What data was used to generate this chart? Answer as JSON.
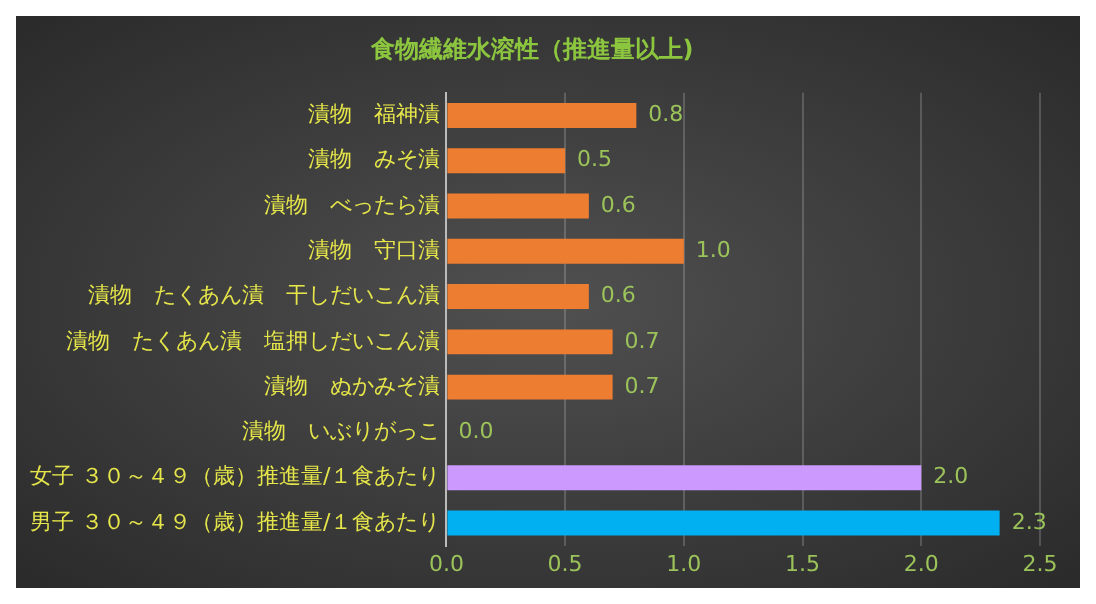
{
  "chart_data": {
    "type": "bar",
    "orientation": "horizontal",
    "title": "食物繊維水溶性（推進量以上)",
    "categories": [
      "漬物　福神漬",
      "漬物　みそ漬",
      "漬物　べったら漬",
      "漬物　守口漬",
      "漬物　たくあん漬　干しだいこん漬",
      "漬物　たくあん漬　塩押しだいこん漬",
      "漬物　ぬかみそ漬",
      "漬物　いぶりがっこ",
      "女子 ３０～４９（歳）推進量/１食あたり",
      "男子 ３０～４９（歳）推進量/１食あたり"
    ],
    "values": [
      0.8,
      0.5,
      0.6,
      1.0,
      0.6,
      0.7,
      0.7,
      0.0,
      2.0,
      2.33
    ],
    "colors": [
      "#ed7d31",
      "#ed7d31",
      "#ed7d31",
      "#ed7d31",
      "#ed7d31",
      "#ed7d31",
      "#ed7d31",
      "#ed7d31",
      "#cc99ff",
      "#00b0f0"
    ],
    "value_labels": [
      "0.8",
      "0.5",
      "0.6",
      "1.0",
      "0.6",
      "0.7",
      "0.7",
      "0.0",
      "2.0",
      "2.3"
    ],
    "xlim": [
      0,
      2.5
    ],
    "xticks": [
      {
        "value": 0,
        "label": "0.0"
      },
      {
        "value": 0.5,
        "label": "0.5"
      },
      {
        "value": 1,
        "label": "1.0"
      },
      {
        "value": 1.5,
        "label": "1.5"
      },
      {
        "value": 2,
        "label": "2.0"
      },
      {
        "value": 2.5,
        "label": "2.5"
      }
    ],
    "grid": "x",
    "legend": false
  }
}
